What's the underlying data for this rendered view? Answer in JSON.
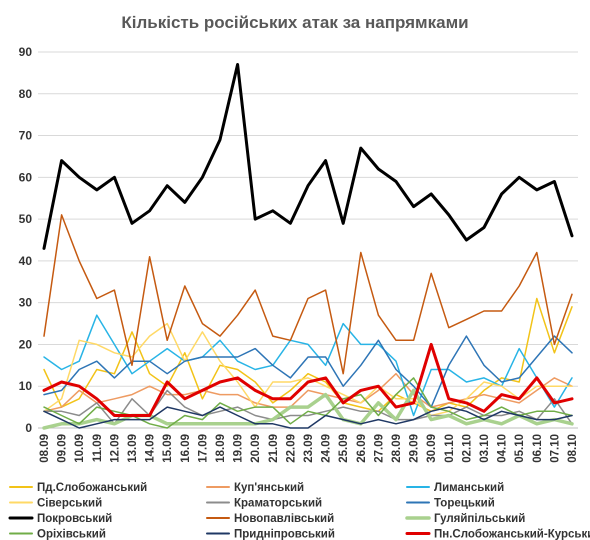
{
  "chart_data": {
    "type": "line",
    "title": "Кількість російських атак за напрямками",
    "xlabel": "",
    "ylabel": "",
    "ylim": [
      0,
      90
    ],
    "yticks": [
      0,
      10,
      20,
      30,
      40,
      50,
      60,
      70,
      80,
      90
    ],
    "grid": true,
    "legend_position": "bottom",
    "categories": [
      "08.09",
      "09.09",
      "10.09",
      "11.09",
      "12.09",
      "13.09",
      "14.09",
      "15.09",
      "16.09",
      "17.09",
      "18.09",
      "19.09",
      "20.09",
      "21.09",
      "22.09",
      "23.09",
      "24.09",
      "25.09",
      "26.09",
      "27.09",
      "28.09",
      "29.09",
      "30.09",
      "01.10",
      "02.10",
      "03.10",
      "04.10",
      "05.10",
      "06.10",
      "07.10",
      "08.10"
    ],
    "series": [
      {
        "name": "Пд.Слобожанський",
        "color": "#f2c318",
        "width": 1.5,
        "values": [
          14,
          5,
          7,
          14,
          13,
          23,
          13,
          10,
          18,
          7,
          15,
          14,
          11,
          6,
          9,
          13,
          11,
          6,
          5,
          4,
          8,
          6,
          4,
          6,
          5,
          9,
          12,
          11,
          31,
          18,
          29
        ]
      },
      {
        "name": "Куп'янський",
        "color": "#ee9b62",
        "width": 1.5,
        "values": [
          4,
          5,
          9,
          6,
          7,
          8,
          10,
          8,
          8,
          9,
          8,
          8,
          6,
          5,
          5,
          9,
          8,
          7,
          6,
          9,
          13,
          8,
          5,
          6,
          7,
          8,
          7,
          6,
          9,
          12,
          10
        ]
      },
      {
        "name": "Лиманський",
        "color": "#28b4e6",
        "width": 1.5,
        "values": [
          17,
          14,
          16,
          27,
          20,
          13,
          16,
          19,
          16,
          17,
          21,
          16,
          14,
          15,
          21,
          20,
          15,
          25,
          20,
          20,
          16,
          3,
          14,
          14,
          11,
          12,
          10,
          19,
          12,
          5,
          12
        ]
      },
      {
        "name": "Сіверський",
        "color": "#ffd966",
        "width": 1.5,
        "values": [
          4,
          7,
          21,
          20,
          18,
          17,
          22,
          25,
          16,
          23,
          16,
          11,
          5,
          11,
          11,
          12,
          10,
          8,
          6,
          10,
          7,
          7,
          3,
          4,
          7,
          11,
          10,
          7,
          10,
          10,
          10
        ]
      },
      {
        "name": "Краматорський",
        "color": "#8c8c8c",
        "width": 1.5,
        "values": [
          4,
          4,
          3,
          6,
          1,
          7,
          3,
          9,
          5,
          3,
          4,
          5,
          3,
          2,
          3,
          3,
          4,
          5,
          4,
          4,
          2,
          2,
          3,
          3,
          5,
          3,
          3,
          4,
          2,
          7,
          1
        ]
      },
      {
        "name": "Торецький",
        "color": "#2e75b6",
        "width": 1.5,
        "values": [
          8,
          9,
          14,
          16,
          12,
          16,
          16,
          13,
          16,
          17,
          17,
          17,
          19,
          15,
          12,
          17,
          17,
          10,
          15,
          21,
          14,
          10,
          5,
          15,
          22,
          15,
          11,
          12,
          17,
          22,
          18
        ]
      },
      {
        "name": "Покровський",
        "color": "#000000",
        "width": 3,
        "values": [
          43,
          64,
          60,
          57,
          60,
          49,
          52,
          58,
          54,
          60,
          69,
          87,
          50,
          52,
          49,
          58,
          64,
          49,
          67,
          62,
          59,
          53,
          56,
          51,
          45,
          48,
          56,
          60,
          57,
          59,
          46
        ]
      },
      {
        "name": "Новопавлівський",
        "color": "#c55a11",
        "width": 1.5,
        "values": [
          22,
          51,
          40,
          31,
          33,
          15,
          41,
          21,
          34,
          25,
          22,
          27,
          33,
          22,
          21,
          31,
          33,
          13,
          42,
          27,
          21,
          21,
          37,
          24,
          26,
          28,
          28,
          34,
          42,
          20,
          32
        ]
      },
      {
        "name": "Гуляйпільський",
        "color": "#a9d18e",
        "width": 3.5,
        "values": [
          0,
          1,
          1,
          2,
          1,
          3,
          3,
          1,
          1,
          1,
          1,
          1,
          1,
          2,
          5,
          5,
          8,
          2,
          1,
          6,
          2,
          9,
          2,
          3,
          1,
          2,
          1,
          3,
          1,
          2,
          1
        ]
      },
      {
        "name": "Оріхівський",
        "color": "#70ad47",
        "width": 1.5,
        "values": [
          5,
          3,
          1,
          5,
          4,
          3,
          1,
          0,
          3,
          2,
          6,
          4,
          5,
          5,
          1,
          4,
          3,
          7,
          8,
          3,
          8,
          12,
          5,
          4,
          2,
          3,
          5,
          3,
          4,
          4,
          3
        ]
      },
      {
        "name": "Придніпровський",
        "color": "#1f3864",
        "width": 1.5,
        "values": [
          4,
          2,
          0,
          1,
          2,
          2,
          2,
          5,
          4,
          3,
          5,
          3,
          1,
          1,
          0,
          0,
          3,
          2,
          1,
          2,
          1,
          2,
          4,
          5,
          4,
          2,
          4,
          3,
          2,
          2,
          3
        ]
      },
      {
        "name": "Пн.Слобожанський-Курський",
        "color": "#e00000",
        "width": 3,
        "values": [
          9,
          11,
          10,
          7,
          3,
          3,
          3,
          11,
          7,
          9,
          11,
          12,
          9,
          7,
          7,
          11,
          12,
          6,
          9,
          10,
          5,
          6,
          20,
          7,
          6,
          4,
          8,
          7,
          12,
          6,
          7
        ]
      }
    ]
  }
}
